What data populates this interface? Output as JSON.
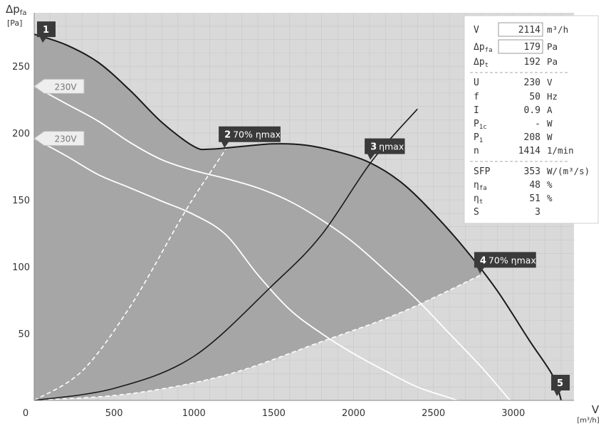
{
  "chart_data": {
    "type": "line",
    "xlabel": "V",
    "xunit": "[m³/h]",
    "ylabel": "Δpfa",
    "yunit": "[Pa]",
    "xlim": [
      0,
      3380
    ],
    "ylim": [
      0,
      290
    ],
    "xticks": [
      500,
      1000,
      1500,
      2000,
      2500,
      3000
    ],
    "yticks": [
      50,
      100,
      150,
      200,
      250
    ],
    "origin_label": "0",
    "grid": true,
    "colors": {
      "plot_bg": "#d9d9d9",
      "operating_region": "#a6a6a6",
      "max_curve": "#1a1a1a",
      "white_curve": "#ffffff",
      "label_bg": "#3a3a3a"
    },
    "max_curve": {
      "x": [
        0,
        200,
        400,
        600,
        800,
        1000,
        1100,
        1300,
        1500,
        1700,
        1900,
        2100,
        2300,
        2500,
        2700,
        2900,
        3100,
        3250,
        3300
      ],
      "y": [
        274,
        266,
        253,
        232,
        208,
        190,
        188,
        190,
        192,
        191,
        186,
        178,
        163,
        140,
        113,
        82,
        45,
        18,
        0
      ]
    },
    "speed_curve_1": {
      "x": [
        0,
        200,
        400,
        600,
        800,
        1000,
        1200,
        1400,
        1600,
        1800,
        2000,
        2200,
        2400,
        2600,
        2800,
        2980
      ],
      "y": [
        235,
        222,
        209,
        193,
        180,
        172,
        166,
        159,
        149,
        135,
        118,
        97,
        75,
        50,
        25,
        0
      ]
    },
    "speed_curve_2": {
      "x": [
        0,
        200,
        400,
        600,
        800,
        1000,
        1200,
        1400,
        1600,
        1800,
        2000,
        2200,
        2400,
        2600,
        2650
      ],
      "y": [
        196,
        183,
        169,
        159,
        149,
        139,
        124,
        94,
        68,
        50,
        35,
        22,
        10,
        2,
        0
      ]
    },
    "system_curve": {
      "x": [
        0,
        500,
        1000,
        1500,
        1800,
        2114,
        2400
      ],
      "y": [
        0,
        9,
        33,
        87,
        124,
        179,
        218
      ]
    },
    "efficiency_curve_high": {
      "x": [
        0,
        300,
        600,
        900,
        1000,
        1100,
        1200
      ],
      "y": [
        0,
        22,
        70,
        132,
        152,
        170,
        188
      ]
    },
    "efficiency_curve_low": {
      "x": [
        0,
        600,
        1200,
        1800,
        2300,
        2800
      ],
      "y": [
        0,
        5,
        19,
        44,
        66,
        94
      ]
    },
    "point_labels": [
      {
        "id": "1",
        "text": "",
        "x": 0,
        "y": 274
      },
      {
        "id": "2",
        "text": "70% ηmax",
        "x": 1200,
        "y": 188
      },
      {
        "id": "3",
        "text": "ηmax",
        "x": 2114,
        "y": 179
      },
      {
        "id": "4",
        "text": "70% ηmax",
        "x": 2800,
        "y": 94
      },
      {
        "id": "5",
        "text": "",
        "x": 3300,
        "y": 0
      }
    ],
    "voltage_labels": [
      {
        "text": "230V",
        "y": 235
      },
      {
        "text": "230V",
        "y": 196
      }
    ]
  },
  "info_panel": {
    "rows": [
      {
        "sym": "V",
        "sub": "",
        "val": "2114",
        "unit": "m³/h",
        "boxed": true
      },
      {
        "sym": "Δp",
        "sub": "fa",
        "val": "179",
        "unit": "Pa",
        "boxed": true
      },
      {
        "sym": "Δp",
        "sub": "t",
        "val": "192",
        "unit": "Pa",
        "boxed": false
      },
      {
        "sym": "U",
        "sub": "",
        "val": "230",
        "unit": "V",
        "boxed": false
      },
      {
        "sym": "f",
        "sub": "",
        "val": "50",
        "unit": "Hz",
        "boxed": false
      },
      {
        "sym": "I",
        "sub": "",
        "val": "0.9",
        "unit": "A",
        "boxed": false
      },
      {
        "sym": "P",
        "sub": "1c",
        "val": "-",
        "unit": "W",
        "boxed": false
      },
      {
        "sym": "P",
        "sub": "1",
        "val": "208",
        "unit": "W",
        "boxed": false
      },
      {
        "sym": "n",
        "sub": "",
        "val": "1414",
        "unit": "1/min",
        "boxed": false
      },
      {
        "sym": "SFP",
        "sub": "",
        "val": "353",
        "unit": "W/(m³/s)",
        "boxed": false
      },
      {
        "sym": "η",
        "sub": "fa",
        "val": "48",
        "unit": "%",
        "boxed": false
      },
      {
        "sym": "η",
        "sub": "t",
        "val": "51",
        "unit": "%",
        "boxed": false
      },
      {
        "sym": "S",
        "sub": "",
        "val": "3",
        "unit": "",
        "boxed": false
      }
    ]
  }
}
